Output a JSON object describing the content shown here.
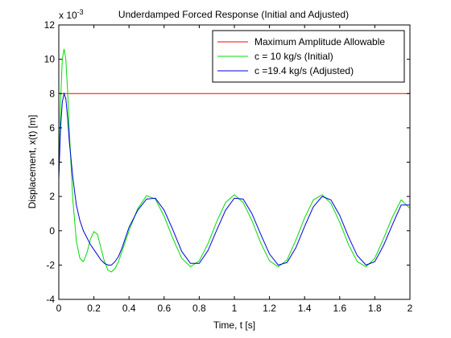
{
  "chart_data": {
    "type": "line",
    "title": "Underdamped Forced Response (Initial and Adjusted)",
    "xlabel": "Time, t [s]",
    "ylabel": "Displacement, x(t) [m]",
    "y_exponent_label": "x 10",
    "y_exponent_power": "-3",
    "xlim": [
      0,
      2
    ],
    "ylim": [
      -4,
      12
    ],
    "x_ticks": [
      0,
      0.2,
      0.4,
      0.6,
      0.8,
      1,
      1.2,
      1.4,
      1.6,
      1.8,
      2
    ],
    "x_tick_labels": [
      "0",
      "0.2",
      "0.4",
      "0.6",
      "0.8",
      "1",
      "1.2",
      "1.4",
      "1.6",
      "1.8",
      "2"
    ],
    "y_ticks": [
      -4,
      -2,
      0,
      2,
      4,
      6,
      8,
      10,
      12
    ],
    "y_tick_labels": [
      "-4",
      "-2",
      "0",
      "2",
      "4",
      "6",
      "8",
      "10",
      "12"
    ],
    "grid": false,
    "legend_position": "top-right",
    "series": [
      {
        "name": "Maximum Amplitude Allowable",
        "color": "#ff0000",
        "x": [
          0,
          2
        ],
        "y": [
          8,
          8
        ]
      },
      {
        "name": "c = 10 kg/s (Initial)",
        "color": "#00dd00",
        "x": [
          0,
          0.01,
          0.02,
          0.03,
          0.04,
          0.05,
          0.06,
          0.08,
          0.1,
          0.12,
          0.14,
          0.16,
          0.18,
          0.2,
          0.22,
          0.24,
          0.26,
          0.28,
          0.3,
          0.32,
          0.34,
          0.36,
          0.38,
          0.4,
          0.45,
          0.5,
          0.55,
          0.6,
          0.65,
          0.7,
          0.75,
          0.8,
          0.85,
          0.9,
          0.95,
          1.0,
          1.05,
          1.1,
          1.15,
          1.2,
          1.25,
          1.3,
          1.35,
          1.4,
          1.45,
          1.5,
          1.55,
          1.6,
          1.65,
          1.7,
          1.75,
          1.8,
          1.85,
          1.9,
          1.95,
          2.0
        ],
        "y": [
          3.2,
          7.5,
          10.0,
          10.6,
          10.0,
          8.2,
          5.8,
          1.8,
          -0.6,
          -1.6,
          -1.8,
          -1.3,
          -0.5,
          -0.05,
          -0.2,
          -1.0,
          -1.8,
          -2.3,
          -2.4,
          -2.2,
          -1.8,
          -1.2,
          -0.6,
          0.0,
          1.3,
          2.05,
          1.85,
          0.85,
          -0.45,
          -1.6,
          -2.1,
          -1.75,
          -0.75,
          0.55,
          1.65,
          2.1,
          1.65,
          0.6,
          -0.7,
          -1.75,
          -2.1,
          -1.7,
          -0.55,
          0.75,
          1.8,
          2.1,
          1.6,
          0.5,
          -0.8,
          -1.8,
          -2.1,
          -1.6,
          -0.45,
          0.8,
          1.8,
          1.3
        ]
      },
      {
        "name": "c =19.4 kg/s (Adjusted)",
        "color": "#0000dd",
        "x": [
          0,
          0.01,
          0.02,
          0.03,
          0.04,
          0.05,
          0.06,
          0.08,
          0.1,
          0.12,
          0.14,
          0.16,
          0.18,
          0.2,
          0.22,
          0.24,
          0.26,
          0.28,
          0.3,
          0.32,
          0.34,
          0.36,
          0.38,
          0.4,
          0.45,
          0.5,
          0.55,
          0.6,
          0.65,
          0.7,
          0.75,
          0.8,
          0.85,
          0.9,
          0.95,
          1.0,
          1.05,
          1.1,
          1.15,
          1.2,
          1.25,
          1.3,
          1.35,
          1.4,
          1.45,
          1.5,
          1.55,
          1.6,
          1.65,
          1.7,
          1.75,
          1.8,
          1.85,
          1.9,
          1.95,
          2.0
        ],
        "y": [
          3.0,
          6.0,
          7.5,
          8.0,
          7.7,
          6.6,
          5.2,
          3.1,
          1.5,
          0.6,
          0.0,
          -0.4,
          -0.8,
          -1.1,
          -1.4,
          -1.7,
          -1.9,
          -2.0,
          -2.0,
          -1.8,
          -1.5,
          -1.0,
          -0.4,
          0.2,
          1.2,
          1.85,
          1.9,
          1.2,
          0.05,
          -1.2,
          -1.9,
          -1.9,
          -1.15,
          0.05,
          1.2,
          1.9,
          1.85,
          1.0,
          -0.2,
          -1.35,
          -2.0,
          -1.85,
          -1.0,
          0.25,
          1.4,
          2.0,
          1.8,
          0.9,
          -0.35,
          -1.45,
          -2.0,
          -1.8,
          -0.85,
          0.35,
          1.5,
          1.5
        ]
      }
    ]
  }
}
